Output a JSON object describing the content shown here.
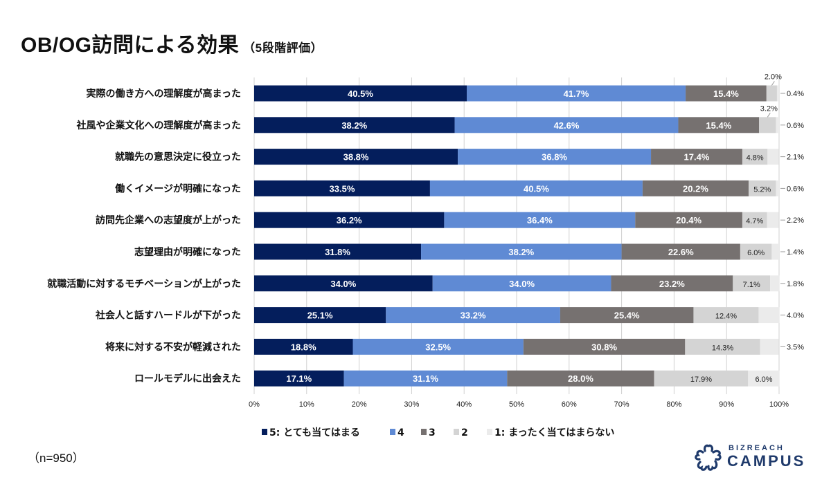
{
  "header": {
    "title": "OB/OG訪問による効果",
    "subtitle": "（5段階評価）"
  },
  "footer": {
    "sample_size": "（n=950）",
    "logo_small": "BIZREACH",
    "logo_big": "CAMPUS"
  },
  "colors": {
    "s5": "#041e5c",
    "s4": "#5f8ad4",
    "s3": "#767170",
    "s2": "#d4d4d4",
    "s1": "#ebebeb",
    "grid": "#d0d0d0",
    "brand": "#1f3a6b"
  },
  "chart_data": {
    "type": "bar",
    "orientation": "horizontal-stacked-100",
    "title": "OB/OG訪問による効果（5段階評価）",
    "xlabel": "",
    "ylabel": "",
    "xlim": [
      0,
      100
    ],
    "x_ticks": [
      "0%",
      "10%",
      "20%",
      "30%",
      "40%",
      "50%",
      "60%",
      "70%",
      "80%",
      "90%",
      "100%"
    ],
    "grid": true,
    "legend_position": "bottom",
    "categories": [
      "実際の働き方への理解度が高まった",
      "社風や企業文化への理解度が高まった",
      "就職先の意思決定に役立った",
      "働くイメージが明確になった",
      "訪問先企業への志望度が上がった",
      "志望理由が明確になった",
      "就職活動に対するモチベーションが上がった",
      "社会人と話すハードルが下がった",
      "将来に対する不安が軽減された",
      "ロールモデルに出会えた"
    ],
    "series": [
      {
        "name": "5: とても当てはまる",
        "key": "s5",
        "values": [
          40.5,
          38.2,
          38.8,
          33.5,
          36.2,
          31.8,
          34.0,
          25.1,
          18.8,
          17.1
        ]
      },
      {
        "name": "4",
        "key": "s4",
        "values": [
          41.7,
          42.6,
          36.8,
          40.5,
          36.4,
          38.2,
          34.0,
          33.2,
          32.5,
          31.1
        ]
      },
      {
        "name": "3",
        "key": "s3",
        "values": [
          15.4,
          15.4,
          17.4,
          20.2,
          20.4,
          22.6,
          23.2,
          25.4,
          30.8,
          28.0
        ]
      },
      {
        "name": "2",
        "key": "s2",
        "values": [
          2.0,
          3.2,
          4.8,
          5.2,
          4.7,
          6.0,
          7.1,
          12.4,
          14.3,
          17.9
        ]
      },
      {
        "name": "1: まったく当てはまらない",
        "key": "s1",
        "values": [
          0.4,
          0.6,
          2.1,
          0.6,
          2.2,
          1.4,
          1.8,
          4.0,
          3.5,
          6.0
        ]
      }
    ]
  }
}
